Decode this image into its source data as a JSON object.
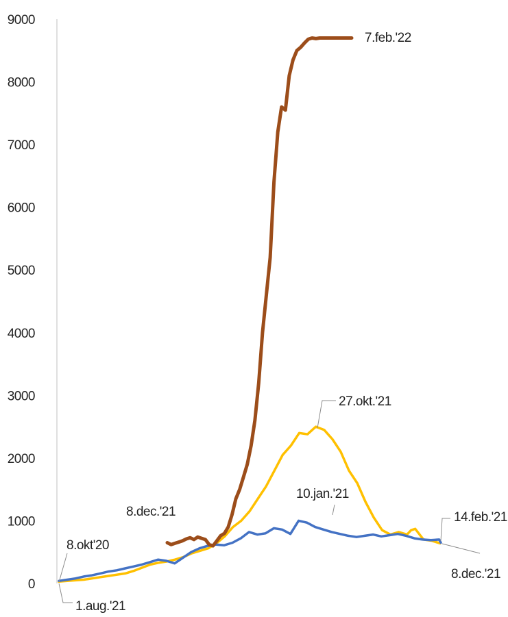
{
  "chart_data": {
    "type": "line",
    "title": "",
    "xlabel": "",
    "ylabel": "",
    "ylim": [
      0,
      9000
    ],
    "yticks": [
      0,
      1000,
      2000,
      3000,
      4000,
      5000,
      6000,
      7000,
      8000,
      9000
    ],
    "ytick_labels": [
      "0",
      "1000",
      "2000",
      "3000",
      "4000",
      "5000",
      "6000",
      "7000",
      "8000",
      "9000"
    ],
    "x_axis": "days since the start of each series (no x tick labels shown)",
    "xlim": [
      0,
      470
    ],
    "grid": false,
    "legend": "none",
    "series": [
      {
        "color": "#4472C4",
        "x": [
          0,
          10,
          20,
          30,
          40,
          50,
          60,
          70,
          80,
          90,
          100,
          110,
          120,
          130,
          140,
          150,
          160,
          170,
          180,
          190,
          200,
          210,
          220,
          230,
          240,
          250,
          260,
          270,
          280,
          290,
          300,
          310,
          320,
          330,
          340,
          350,
          360,
          370,
          380,
          390,
          400,
          410,
          420,
          430,
          440,
          450,
          460,
          462
        ],
        "values": [
          40,
          60,
          80,
          110,
          130,
          160,
          190,
          210,
          240,
          270,
          300,
          340,
          380,
          360,
          320,
          410,
          500,
          560,
          600,
          620,
          610,
          650,
          720,
          820,
          780,
          800,
          880,
          860,
          790,
          1000,
          970,
          900,
          860,
          820,
          790,
          760,
          740,
          760,
          780,
          750,
          770,
          790,
          760,
          720,
          700,
          690,
          700,
          650
        ]
      },
      {
        "color": "#FFC000",
        "x": [
          0,
          10,
          20,
          30,
          40,
          50,
          60,
          70,
          80,
          90,
          100,
          110,
          120,
          130,
          140,
          150,
          160,
          170,
          180,
          190,
          200,
          210,
          220,
          230,
          240,
          250,
          260,
          270,
          280,
          290,
          300,
          310,
          320,
          330,
          340,
          350,
          360,
          370,
          380,
          390,
          400,
          410,
          420,
          425,
          430,
          440,
          450,
          460
        ],
        "values": [
          30,
          40,
          50,
          60,
          80,
          100,
          120,
          140,
          160,
          200,
          250,
          300,
          330,
          350,
          380,
          420,
          480,
          520,
          560,
          640,
          750,
          900,
          1000,
          1150,
          1350,
          1550,
          1800,
          2050,
          2200,
          2400,
          2380,
          2500,
          2450,
          2300,
          2100,
          1800,
          1600,
          1300,
          1050,
          850,
          780,
          820,
          780,
          850,
          870,
          700,
          680,
          640
        ]
      },
      {
        "color": "#9C4D1A",
        "x": [
          0,
          5,
          10,
          15,
          20,
          25,
          30,
          35,
          40,
          45,
          50,
          55,
          60,
          65,
          70,
          75,
          80,
          85,
          90,
          95,
          100,
          105,
          110,
          115,
          120,
          125,
          130,
          135,
          140,
          145,
          150,
          155,
          160,
          165,
          170,
          175,
          180,
          185,
          190,
          195,
          200,
          205,
          210,
          215,
          220,
          225,
          230,
          235,
          240,
          242
        ],
        "values": [
          650,
          620,
          640,
          660,
          680,
          710,
          730,
          700,
          740,
          720,
          700,
          620,
          600,
          680,
          760,
          800,
          900,
          1100,
          1350,
          1500,
          1700,
          1900,
          2200,
          2600,
          3200,
          4000,
          4600,
          5200,
          6400,
          7200,
          7600,
          7550,
          8100,
          8350,
          8500,
          8550,
          8620,
          8680,
          8700,
          8690,
          8700,
          8700,
          8700,
          8700,
          8700,
          8700,
          8700,
          8700,
          8700,
          8700
        ]
      }
    ],
    "annotations": {
      "blue_start": "8.okt'20",
      "blue_peak": "10.jan.'21",
      "blue_end": "14.feb.'21",
      "yellow_start": "1.aug.'21",
      "yellow_peak": "27.okt.'21",
      "yellow_end": "8.dec.'21",
      "brown_start": "8.dec.'21",
      "brown_end": "7.feb.'22"
    }
  }
}
